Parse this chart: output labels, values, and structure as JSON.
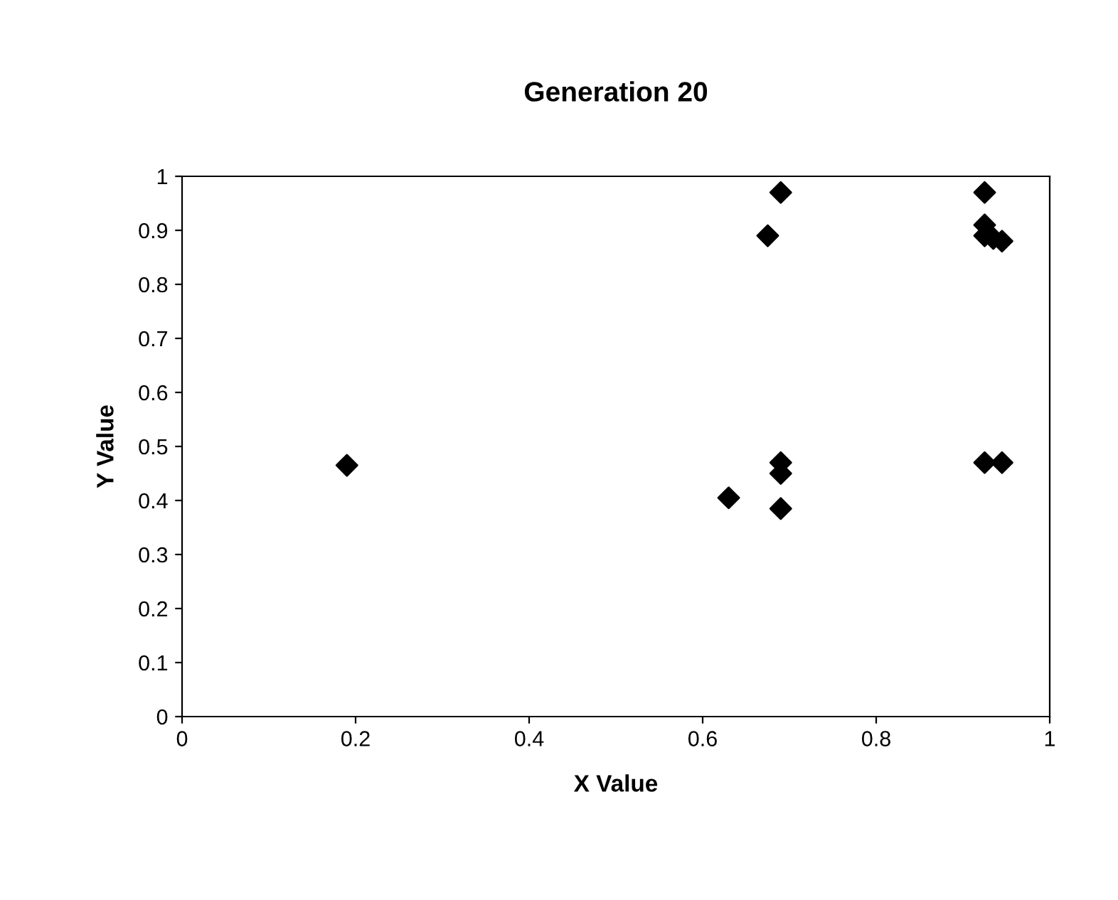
{
  "chart_data": {
    "type": "scatter",
    "title": "Generation 20",
    "xlabel": "X Value",
    "ylabel": "Y Value",
    "x": [
      0.19,
      0.63,
      0.675,
      0.69,
      0.69,
      0.69,
      0.69,
      0.925,
      0.925,
      0.925,
      0.935,
      0.945,
      0.925,
      0.945
    ],
    "values": [
      0.465,
      0.405,
      0.89,
      0.97,
      0.47,
      0.45,
      0.385,
      0.97,
      0.91,
      0.89,
      0.885,
      0.88,
      0.47,
      0.47
    ],
    "color": "#000000",
    "marker": "diamond",
    "xlim": [
      0,
      1
    ],
    "xticks": [
      0,
      0.2,
      0.4,
      0.6,
      0.8,
      1
    ],
    "ylim": [
      0,
      1
    ],
    "yticks": [
      0,
      0.1,
      0.2,
      0.3,
      0.4,
      0.5,
      0.6,
      0.7,
      0.8,
      0.9,
      1
    ],
    "grid": false,
    "legend": false
  }
}
